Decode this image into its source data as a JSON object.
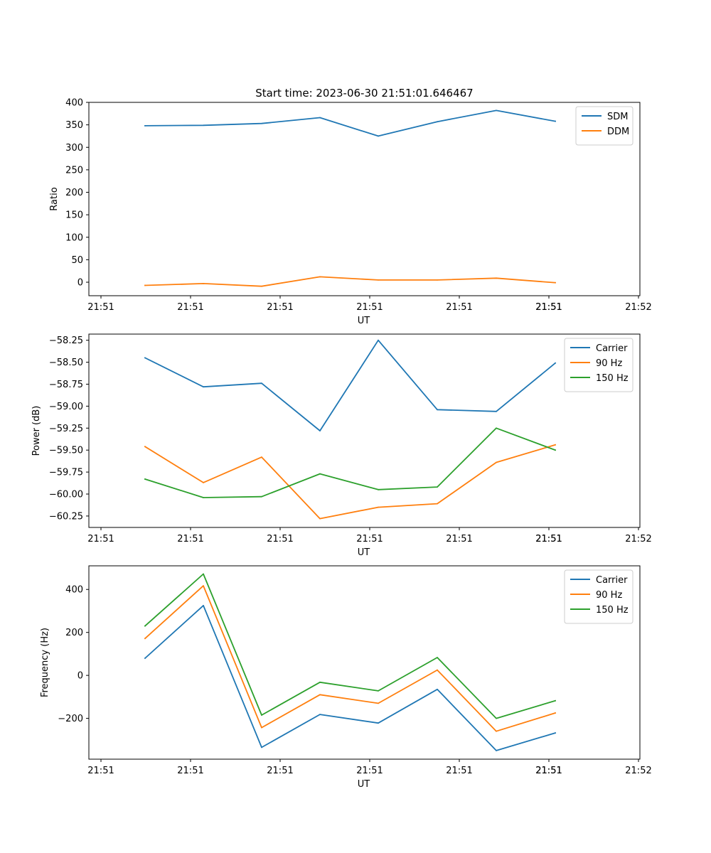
{
  "colors": {
    "blue": "#1f77b4",
    "orange": "#ff7f0e",
    "green": "#2ca02c"
  },
  "chart_data": [
    {
      "type": "line",
      "title": "Start time: 2023-06-30 21:51:01.646467",
      "xlabel": "UT",
      "ylabel": "Ratio",
      "x_tick_labels": [
        "21:51",
        "21:51",
        "21:51",
        "21:51",
        "21:51",
        "21:51",
        "21:51",
        "21:52"
      ],
      "ylim": [
        -30,
        400
      ],
      "y_ticks": [
        0,
        50,
        100,
        150,
        200,
        250,
        300,
        350,
        400
      ],
      "y_tick_labels": [
        "0",
        "50",
        "100",
        "150",
        "200",
        "250",
        "300",
        "350",
        "400"
      ],
      "legend_position": "top-right",
      "series": [
        {
          "name": "SDM",
          "color": "#1f77b4",
          "values": [
            348,
            349,
            353,
            366,
            325,
            357,
            382,
            358
          ]
        },
        {
          "name": "DDM",
          "color": "#ff7f0e",
          "values": [
            -7,
            -3,
            -9,
            12,
            5,
            5,
            9,
            -1
          ]
        }
      ]
    },
    {
      "type": "line",
      "title": "",
      "xlabel": "UT",
      "ylabel": "Power (dB)",
      "x_tick_labels": [
        "21:51",
        "21:51",
        "21:51",
        "21:51",
        "21:51",
        "21:51",
        "21:51",
        "21:52"
      ],
      "ylim": [
        -60.38,
        -58.18
      ],
      "y_ticks": [
        -60.25,
        -60.0,
        -59.75,
        -59.5,
        -59.25,
        -59.0,
        -58.75,
        -58.5,
        -58.25
      ],
      "y_tick_labels": [
        "−60.25",
        "−60.00",
        "−59.75",
        "−59.50",
        "−59.25",
        "−59.00",
        "−58.75",
        "−58.50",
        "−58.25"
      ],
      "legend_position": "top-right",
      "series": [
        {
          "name": "Carrier",
          "color": "#1f77b4",
          "values": [
            -58.45,
            -58.78,
            -58.74,
            -59.28,
            -58.25,
            -59.04,
            -59.06,
            -58.51
          ]
        },
        {
          "name": "90 Hz",
          "color": "#ff7f0e",
          "values": [
            -59.46,
            -59.87,
            -59.58,
            -60.28,
            -60.15,
            -60.11,
            -59.64,
            -59.44
          ]
        },
        {
          "name": "150 Hz",
          "color": "#2ca02c",
          "values": [
            -59.83,
            -60.04,
            -60.03,
            -59.77,
            -59.95,
            -59.92,
            -59.25,
            -59.5
          ]
        }
      ]
    },
    {
      "type": "line",
      "title": "",
      "xlabel": "UT",
      "ylabel": "Frequency (Hz)",
      "x_tick_labels": [
        "21:51",
        "21:51",
        "21:51",
        "21:51",
        "21:51",
        "21:51",
        "21:51",
        "21:52"
      ],
      "ylim": [
        -390,
        510
      ],
      "y_ticks": [
        -200,
        0,
        200,
        400
      ],
      "y_tick_labels": [
        "−200",
        "0",
        "200",
        "400"
      ],
      "legend_position": "top-right",
      "series": [
        {
          "name": "Carrier",
          "color": "#1f77b4",
          "values": [
            80,
            325,
            -335,
            -182,
            -222,
            -65,
            -350,
            -268
          ]
        },
        {
          "name": "90 Hz",
          "color": "#ff7f0e",
          "values": [
            172,
            417,
            -243,
            -90,
            -130,
            25,
            -260,
            -175
          ]
        },
        {
          "name": "150 Hz",
          "color": "#2ca02c",
          "values": [
            230,
            472,
            -185,
            -32,
            -72,
            83,
            -200,
            -118
          ]
        }
      ]
    }
  ]
}
